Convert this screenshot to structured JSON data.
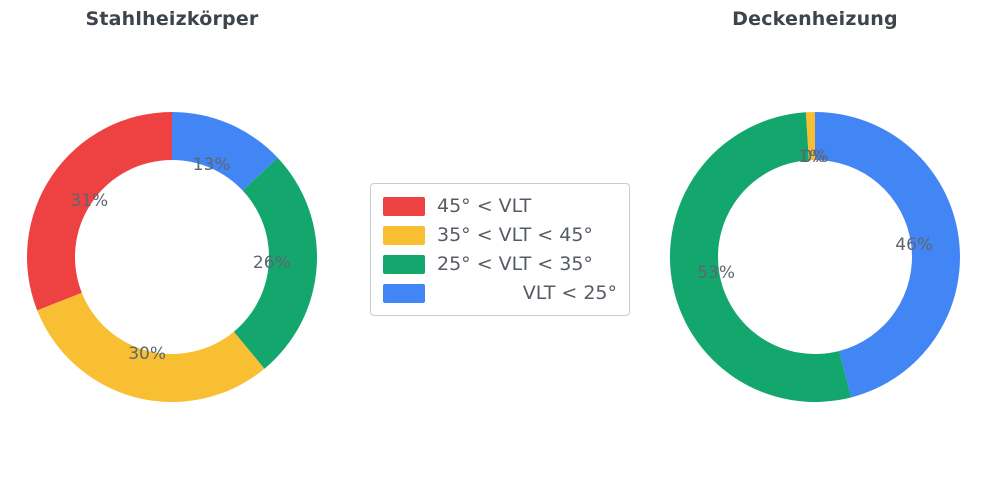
{
  "chart_data": [
    {
      "type": "pie",
      "title": "Stahlheizkörper",
      "hole": 0.669,
      "direction": "clockwise",
      "start_angle_deg": 0,
      "labels": [
        "VLT < 25°",
        "25° < VLT < 35°",
        "35° < VLT < 45°",
        "45° < VLT"
      ],
      "values": [
        13,
        26,
        30,
        31
      ],
      "value_labels": [
        "13%",
        "26%",
        "30%",
        "31%"
      ],
      "colors": [
        "#4285f4",
        "#13a76e",
        "#f9bf33",
        "#ee4242"
      ]
    },
    {
      "type": "pie",
      "title": "Deckenheizung",
      "hole": 0.669,
      "direction": "clockwise",
      "start_angle_deg": 0,
      "labels": [
        "VLT < 25°",
        "25° < VLT < 35°",
        "35° < VLT < 45°",
        "45° < VLT"
      ],
      "values": [
        46,
        53,
        1,
        0
      ],
      "value_labels": [
        "46%",
        "53%",
        "1%",
        "0%"
      ],
      "colors": [
        "#4285f4",
        "#13a76e",
        "#f9bf33",
        "#ee4242"
      ]
    }
  ],
  "legend": {
    "items": [
      {
        "label": "45° < VLT",
        "color": "#ee4242"
      },
      {
        "label": "35° < VLT < 45°",
        "color": "#f9bf33"
      },
      {
        "label": "25° < VLT < 35°",
        "color": "#13a76e"
      },
      {
        "label": "VLT < 25°",
        "color": "#4285f4"
      }
    ]
  }
}
